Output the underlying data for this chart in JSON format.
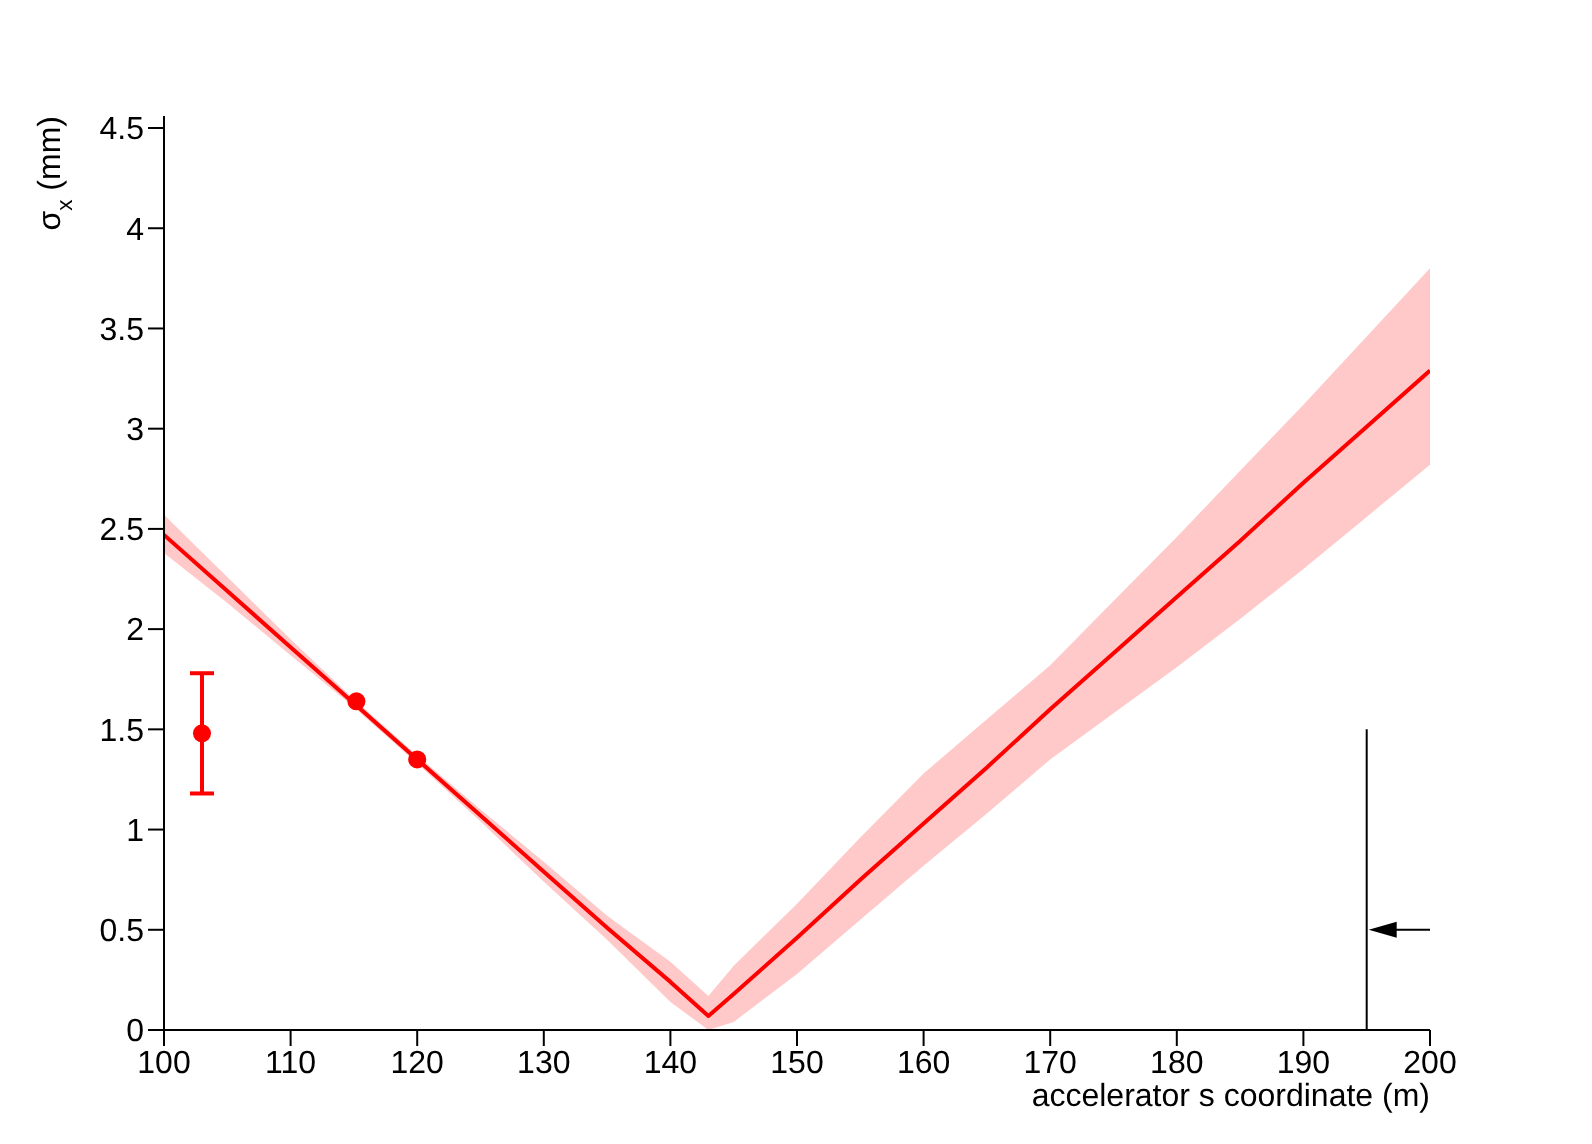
{
  "chart_data": {
    "type": "line",
    "xlabel": "accelerator s coordinate (m)",
    "ylabel": "σ$_{x}$ (mm)",
    "xlim": [
      100,
      200
    ],
    "xticks": [
      100,
      110,
      120,
      130,
      140,
      150,
      160,
      170,
      180,
      190,
      200
    ],
    "ylim": [
      0,
      4.56
    ],
    "yticks": [
      0,
      0.5,
      1,
      1.5,
      2,
      2.5,
      3,
      3.5,
      4,
      4.5
    ],
    "series": [
      {
        "color": "#ff0000",
        "x": [
          100,
          105,
          110,
          115,
          120,
          125,
          130,
          135,
          140,
          143,
          145,
          150,
          155,
          160,
          165,
          170,
          175,
          180,
          185,
          190,
          195,
          200
        ],
        "values": [
          2.47,
          2.19,
          1.91,
          1.63,
          1.35,
          1.07,
          0.79,
          0.51,
          0.24,
          0.07,
          0.18,
          0.46,
          0.75,
          1.03,
          1.31,
          1.6,
          1.88,
          2.16,
          2.44,
          2.73,
          3.01,
          3.29
        ],
        "lower": [
          2.38,
          2.13,
          1.87,
          1.61,
          1.33,
          1.04,
          0.74,
          0.45,
          0.14,
          0,
          0.04,
          0.28,
          0.55,
          0.82,
          1.08,
          1.35,
          1.58,
          1.81,
          2.05,
          2.3,
          2.56,
          2.82
        ],
        "upper": [
          2.57,
          2.26,
          1.95,
          1.65,
          1.37,
          1.1,
          0.84,
          0.57,
          0.34,
          0.17,
          0.32,
          0.63,
          0.96,
          1.28,
          1.55,
          1.82,
          2.14,
          2.46,
          2.79,
          3.12,
          3.46,
          3.8
        ]
      },
      {
        "type": "scatter",
        "color": "#ff0000",
        "marker": "circle",
        "x": [
          103,
          115.2,
          120
        ],
        "values": [
          1.48,
          1.64,
          1.35
        ],
        "errors": [
          0.3,
          null,
          null
        ]
      },
      {
        "type": "line",
        "color": "#000000",
        "x": [
          195,
          195
        ],
        "values": [
          0,
          1.5
        ]
      }
    ]
  }
}
